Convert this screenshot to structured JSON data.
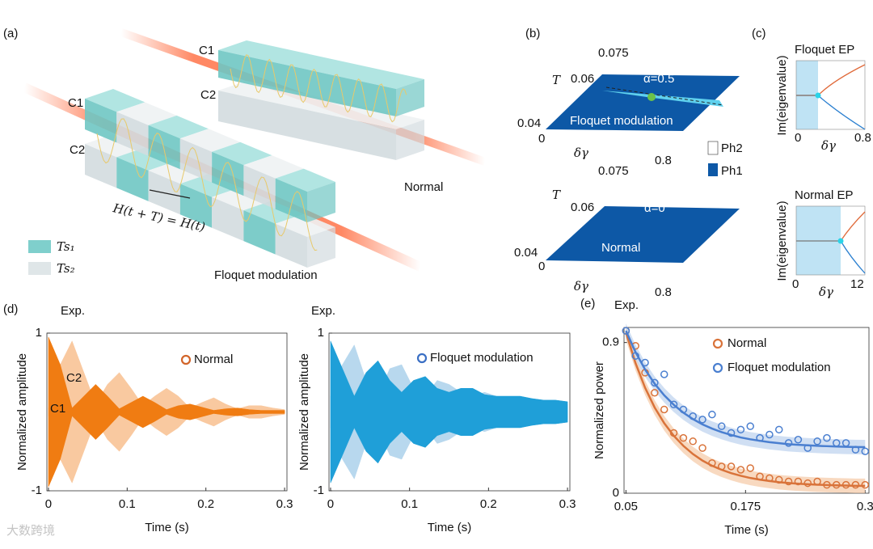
{
  "panel_a": {
    "label": "(a)",
    "normal_c1": "C1",
    "normal_c2": "C2",
    "floquet_c1": "C1",
    "floquet_c2": "C2",
    "equation": "H(t + T) = H(t)",
    "legend": [
      "Ts₁",
      "Ts₂"
    ],
    "normal": "Normal",
    "floquet": "Floquet modulation"
  },
  "panel_b": {
    "label": "(b)",
    "plots": [
      {
        "y_label": "T",
        "yticks": [
          0.04,
          0.06,
          0.075
        ],
        "x_label": "δγ",
        "xticks": [
          0,
          0.8
        ],
        "alpha": "α=0.5",
        "text": "Floquet modulation"
      },
      {
        "y_label": "T",
        "yticks": [
          0.04,
          0.06,
          0.075
        ],
        "x_label": "δγ",
        "xticks": [
          0,
          0.8
        ],
        "alpha": "α=0",
        "text": "Normal"
      }
    ],
    "legend": [
      "Ph2",
      "Ph1"
    ]
  },
  "panel_c": {
    "label": "(c)",
    "plots": [
      {
        "title": "Floquet EP",
        "y_label": "Im(eigenvalue)",
        "x_label": "δγ",
        "xticks": [
          0,
          0.8
        ]
      },
      {
        "title": "Normal EP",
        "y_label": "Im(eigenvalue)",
        "x_label": "δγ",
        "xticks": [
          0,
          12
        ]
      }
    ]
  },
  "chart_data": [
    {
      "type": "area",
      "panel_label": "(d)",
      "annotation": "Exp.",
      "y_label": "Normalized amplitude",
      "x_label": "Time (s)",
      "legend": "Normal",
      "legend_color": "#d2652a",
      "x": [
        0,
        0.015,
        0.03,
        0.045,
        0.06,
        0.075,
        0.09,
        0.105,
        0.12,
        0.135,
        0.15,
        0.165,
        0.18,
        0.195,
        0.21,
        0.225,
        0.24,
        0.255,
        0.27,
        0.285,
        0.3
      ],
      "series": [
        {
          "name": "C1",
          "color": "#f07c12",
          "values": [
            0.95,
            0.6,
            0.05,
            0.2,
            0.35,
            0.2,
            0.04,
            0.12,
            0.2,
            0.12,
            0.03,
            0.08,
            0.1,
            0.06,
            0.02,
            0.04,
            0.05,
            0.03,
            0.02,
            0.02,
            0.02
          ]
        },
        {
          "name": "C2",
          "color": "#f9c9a0",
          "values": [
            0.05,
            0.6,
            0.9,
            0.5,
            0.1,
            0.35,
            0.5,
            0.3,
            0.08,
            0.2,
            0.3,
            0.2,
            0.05,
            0.12,
            0.18,
            0.1,
            0.04,
            0.08,
            0.08,
            0.05,
            0.03
          ]
        }
      ],
      "xlim": [
        -0.002,
        0.303
      ],
      "ylim": [
        -1,
        1
      ],
      "xticks": [
        0,
        0.1,
        0.2,
        0.3
      ],
      "yticks": [
        -1,
        1
      ]
    },
    {
      "type": "area",
      "annotation": "Exp.",
      "y_label": "Normalized amplitude",
      "x_label": "Time (s)",
      "legend": "Floquet modulation",
      "legend_color": "#3a6fc4",
      "x": [
        0,
        0.015,
        0.03,
        0.045,
        0.06,
        0.075,
        0.09,
        0.105,
        0.12,
        0.135,
        0.15,
        0.165,
        0.18,
        0.195,
        0.21,
        0.225,
        0.24,
        0.255,
        0.27,
        0.285,
        0.3
      ],
      "series": [
        {
          "color": "#1f9fd8",
          "values": [
            0.9,
            0.55,
            0.2,
            0.5,
            0.65,
            0.4,
            0.25,
            0.4,
            0.45,
            0.3,
            0.25,
            0.3,
            0.3,
            0.22,
            0.2,
            0.2,
            0.2,
            0.17,
            0.15,
            0.15,
            0.13
          ]
        },
        {
          "color": "#b8d8ee",
          "values": [
            0.2,
            0.6,
            0.85,
            0.4,
            0.2,
            0.55,
            0.6,
            0.3,
            0.2,
            0.4,
            0.35,
            0.25,
            0.2,
            0.25,
            0.2,
            0.18,
            0.15,
            0.15,
            0.12,
            0.1,
            0.1
          ]
        }
      ],
      "xlim": [
        -0.002,
        0.303
      ],
      "ylim": [
        -1,
        1
      ],
      "xticks": [
        0,
        0.1,
        0.2,
        0.3
      ],
      "yticks": [
        -1,
        1
      ]
    },
    {
      "type": "scatter_fit",
      "panel_label": "(e)",
      "annotation": "Exp.",
      "y_label": "Normalized power",
      "x_label": "Time (s)",
      "x": [
        0.05,
        0.06,
        0.07,
        0.08,
        0.09,
        0.1,
        0.11,
        0.12,
        0.13,
        0.14,
        0.15,
        0.16,
        0.17,
        0.18,
        0.19,
        0.2,
        0.21,
        0.22,
        0.23,
        0.24,
        0.25,
        0.26,
        0.27,
        0.28,
        0.29,
        0.3
      ],
      "series": [
        {
          "name": "Normal",
          "color": "#d9733a",
          "band_color": "#f5c9a5",
          "values": [
            0.97,
            0.88,
            0.72,
            0.6,
            0.5,
            0.36,
            0.33,
            0.31,
            0.27,
            0.18,
            0.16,
            0.16,
            0.14,
            0.15,
            0.1,
            0.09,
            0.08,
            0.07,
            0.07,
            0.06,
            0.07,
            0.05,
            0.05,
            0.05,
            0.05,
            0.05
          ],
          "fit": [
            0.96,
            0.777,
            0.63,
            0.512,
            0.418,
            0.343,
            0.283,
            0.234,
            0.195,
            0.164,
            0.14,
            0.12,
            0.104,
            0.091,
            0.081,
            0.073,
            0.066,
            0.061,
            0.057,
            0.054,
            0.051,
            0.049,
            0.047,
            0.046,
            0.044,
            0.044
          ]
        },
        {
          "name": "Floquet modulation",
          "color": "#4a7fd0",
          "band_color": "#bcd2ee",
          "values": [
            0.97,
            0.82,
            0.78,
            0.66,
            0.71,
            0.53,
            0.5,
            0.46,
            0.44,
            0.47,
            0.4,
            0.36,
            0.38,
            0.4,
            0.33,
            0.35,
            0.38,
            0.3,
            0.32,
            0.27,
            0.31,
            0.33,
            0.3,
            0.3,
            0.26,
            0.25
          ],
          "fit": [
            0.97,
            0.843,
            0.739,
            0.654,
            0.585,
            0.528,
            0.481,
            0.443,
            0.411,
            0.386,
            0.365,
            0.348,
            0.333,
            0.322,
            0.313,
            0.305,
            0.299,
            0.293,
            0.289,
            0.286,
            0.283,
            0.281,
            0.279,
            0.277,
            0.276,
            0.275
          ]
        }
      ],
      "xlim": [
        0.048,
        0.304
      ],
      "ylim": [
        0,
        0.99
      ],
      "xticks": [
        0.05,
        0.175,
        0.3
      ],
      "yticks": [
        0,
        0.9
      ]
    }
  ],
  "watermark": "大数跨境"
}
